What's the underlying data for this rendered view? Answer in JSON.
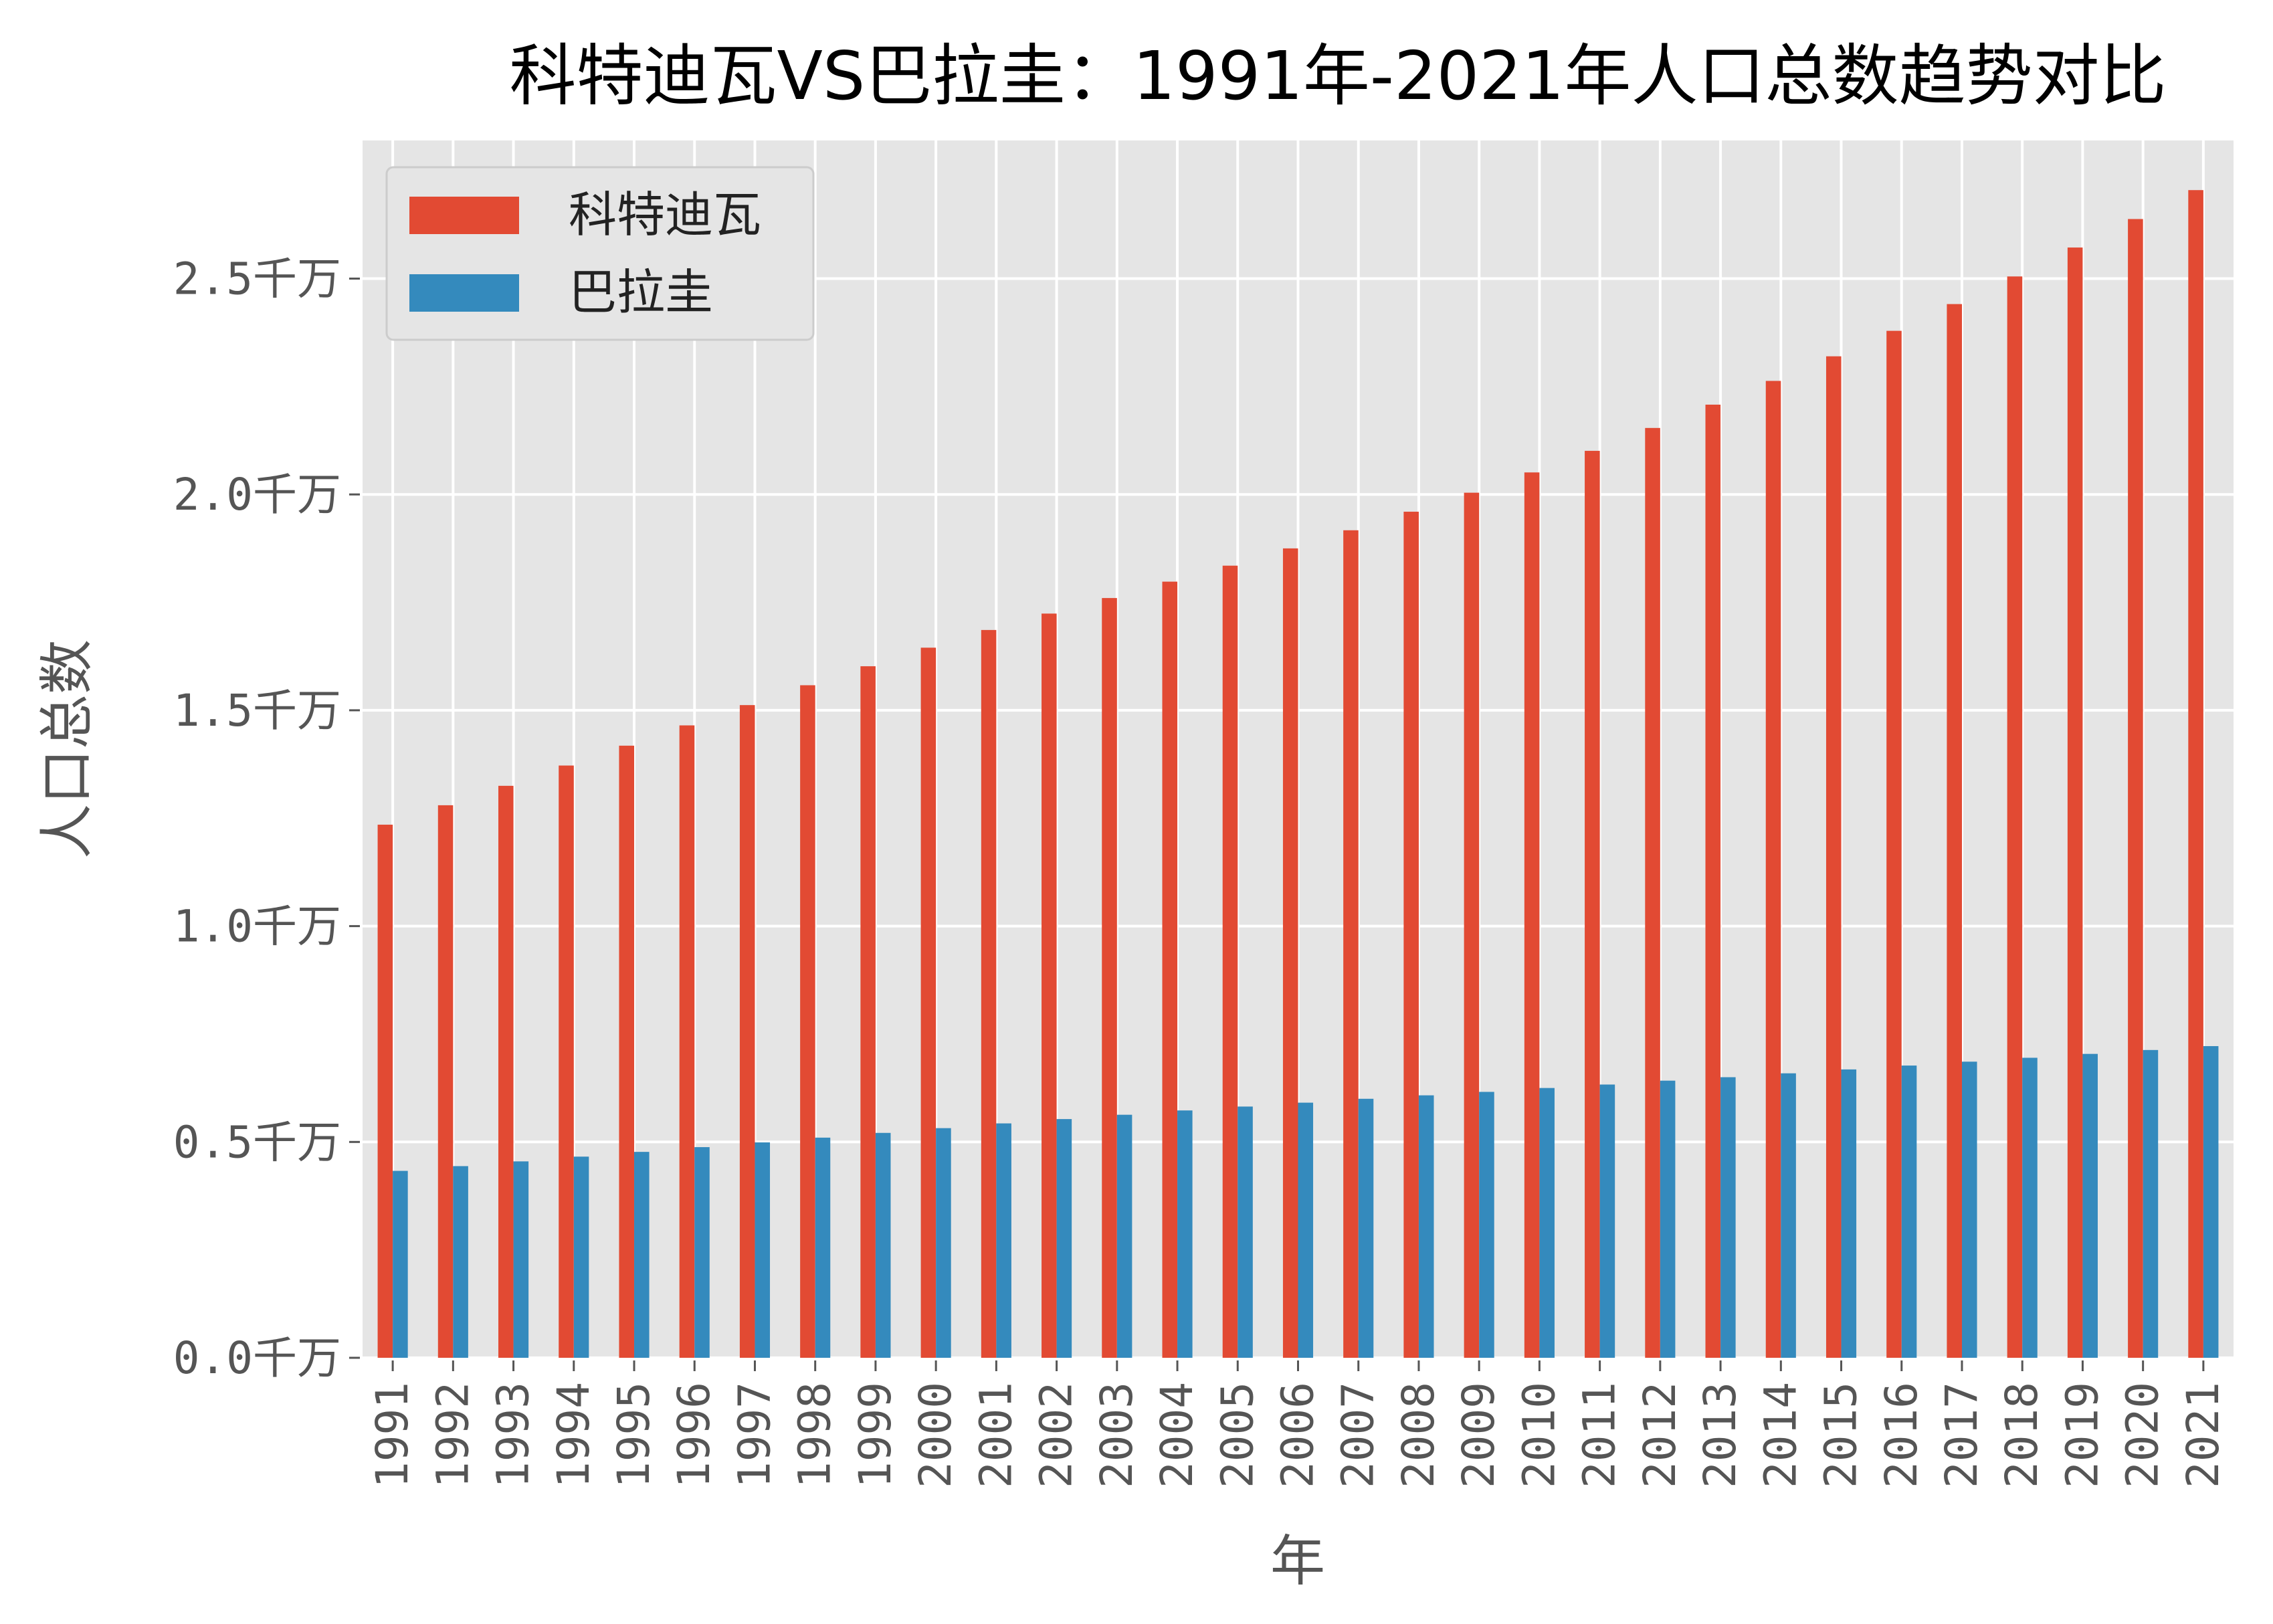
{
  "chart_data": {
    "type": "bar",
    "title": "科特迪瓦VS巴拉圭：1991年-2021年人口总数趋势对比",
    "xlabel": "年",
    "ylabel": "人口总数",
    "categories": [
      "1991",
      "1992",
      "1993",
      "1994",
      "1995",
      "1996",
      "1997",
      "1998",
      "1999",
      "2000",
      "2001",
      "2002",
      "2003",
      "2004",
      "2005",
      "2006",
      "2007",
      "2008",
      "2009",
      "2010",
      "2011",
      "2012",
      "2013",
      "2014",
      "2015",
      "2016",
      "2017",
      "2018",
      "2019",
      "2020",
      "2021"
    ],
    "series": [
      {
        "name": "科特迪瓦",
        "color": "#E24A33",
        "values": [
          12.35,
          12.8,
          13.25,
          13.72,
          14.18,
          14.65,
          15.12,
          15.58,
          16.02,
          16.45,
          16.86,
          17.24,
          17.6,
          17.98,
          18.35,
          18.75,
          19.17,
          19.6,
          20.04,
          20.51,
          21.01,
          21.54,
          22.08,
          22.63,
          23.2,
          23.79,
          24.41,
          25.05,
          25.72,
          26.38,
          27.05
        ]
      },
      {
        "name": "巴拉圭",
        "color": "#348ABD",
        "values": [
          4.33,
          4.44,
          4.55,
          4.66,
          4.77,
          4.88,
          4.99,
          5.1,
          5.21,
          5.32,
          5.43,
          5.53,
          5.63,
          5.73,
          5.82,
          5.91,
          6.0,
          6.08,
          6.16,
          6.25,
          6.33,
          6.42,
          6.5,
          6.59,
          6.68,
          6.77,
          6.86,
          6.95,
          7.04,
          7.13,
          7.22
        ]
      }
    ],
    "yunit": "百万",
    "ylim": [
      0,
      28.2
    ],
    "yticks": [
      {
        "value": 0,
        "label": "0.0千万"
      },
      {
        "value": 5,
        "label": "0.5千万"
      },
      {
        "value": 10,
        "label": "1.0千万"
      },
      {
        "value": 15,
        "label": "1.5千万"
      },
      {
        "value": 20,
        "label": "2.0千万"
      },
      {
        "value": 25,
        "label": "2.5千万"
      }
    ],
    "grid": true,
    "legend_position": "top-left",
    "background": "#E5E5E5"
  }
}
